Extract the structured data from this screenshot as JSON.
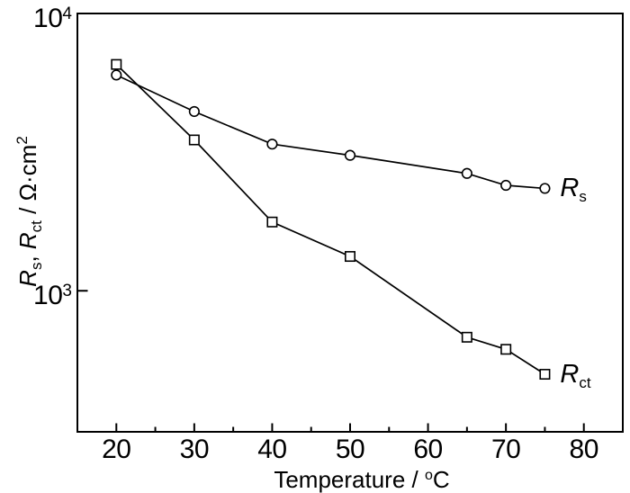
{
  "chart_data": {
    "type": "line",
    "title": "",
    "x": [
      20,
      30,
      40,
      50,
      65,
      70,
      75
    ],
    "series": [
      {
        "name": "Rs",
        "label_base": "R",
        "label_sub": "s",
        "marker": "circle",
        "values": [
          6000,
          4430,
          3380,
          3080,
          2650,
          2400,
          2340
        ]
      },
      {
        "name": "Rct",
        "label_base": "R",
        "label_sub": "ct",
        "marker": "square",
        "values": [
          6550,
          3500,
          1770,
          1330,
          680,
          615,
          500
        ]
      }
    ],
    "xlabel": {
      "base": "Temperature / ",
      "sup": "o",
      "tail": "C"
    },
    "ylabel": {
      "var1": "R",
      "sub1": "s",
      "sep": ", ",
      "var2": "R",
      "sub2": "ct",
      "units": " / Ω·cm",
      "sup": "2"
    },
    "x_axis": {
      "min": 15,
      "max": 85,
      "scale": "linear",
      "major_ticks": [
        20,
        30,
        40,
        50,
        60,
        70,
        80
      ],
      "minor_ticks": [
        25,
        35,
        45,
        55,
        65,
        75
      ]
    },
    "y_axis": {
      "min": 310,
      "max": 10000,
      "scale": "log",
      "ticks": [
        {
          "value": 10000,
          "base": "10",
          "exp": "4"
        },
        {
          "value": 1000,
          "base": "10",
          "exp": "3"
        }
      ]
    },
    "grid": false,
    "legend_position": "right-of-last-point",
    "colors": {
      "foreground": "#000000",
      "background": "#ffffff"
    }
  }
}
